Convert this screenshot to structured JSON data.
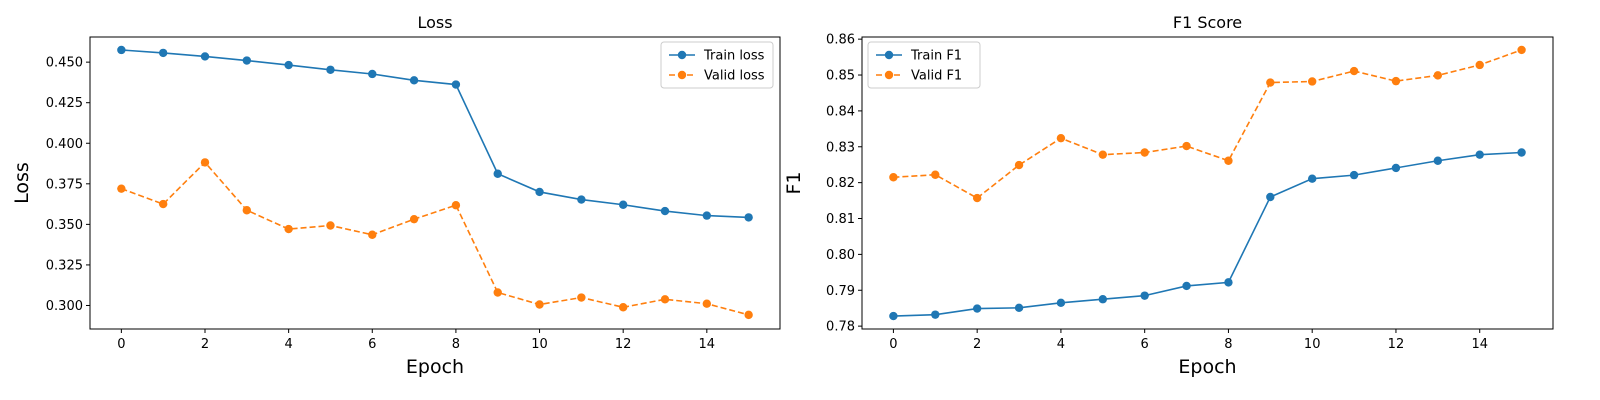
{
  "colors": {
    "train": "#1f77b4",
    "valid": "#ff7f0e"
  },
  "chart_data": [
    {
      "type": "line",
      "title": "Loss",
      "xlabel": "Epoch",
      "ylabel": "Loss",
      "x": [
        0,
        1,
        2,
        3,
        4,
        5,
        6,
        7,
        8,
        9,
        10,
        11,
        12,
        13,
        14,
        15
      ],
      "xlim": [
        -0.75,
        15.75
      ],
      "ylim": [
        0.2855,
        0.4655
      ],
      "xticks": [
        0,
        2,
        4,
        6,
        8,
        10,
        12,
        14
      ],
      "xtick_labels": [
        "0",
        "2",
        "4",
        "6",
        "8",
        "10",
        "12",
        "14"
      ],
      "yticks": [
        0.3,
        0.325,
        0.35,
        0.375,
        0.4,
        0.425,
        0.45
      ],
      "ytick_labels": [
        "0.300",
        "0.325",
        "0.350",
        "0.375",
        "0.400",
        "0.425",
        "0.450"
      ],
      "legend_position": "top-right",
      "grid": false,
      "series": [
        {
          "name": "Train loss",
          "style": "solid",
          "color_key": "train",
          "values": [
            0.4575,
            0.4557,
            0.4535,
            0.451,
            0.4482,
            0.4453,
            0.4427,
            0.4388,
            0.4362,
            0.3812,
            0.37,
            0.3653,
            0.3621,
            0.3582,
            0.3554,
            0.3543
          ]
        },
        {
          "name": "Valid loss",
          "style": "dashed",
          "color_key": "valid",
          "values": [
            0.372,
            0.3625,
            0.3882,
            0.3587,
            0.3471,
            0.3493,
            0.3436,
            0.3532,
            0.3618,
            0.308,
            0.3006,
            0.3049,
            0.2989,
            0.3038,
            0.3011,
            0.2942
          ]
        }
      ]
    },
    {
      "type": "line",
      "title": "F1 Score",
      "xlabel": "Epoch",
      "ylabel": "F1",
      "x": [
        0,
        1,
        2,
        3,
        4,
        5,
        6,
        7,
        8,
        9,
        10,
        11,
        12,
        13,
        14,
        15
      ],
      "xlim": [
        -0.75,
        15.75
      ],
      "ylim": [
        0.7792,
        0.8606
      ],
      "xticks": [
        0,
        2,
        4,
        6,
        8,
        10,
        12,
        14
      ],
      "xtick_labels": [
        "0",
        "2",
        "4",
        "6",
        "8",
        "10",
        "12",
        "14"
      ],
      "yticks": [
        0.78,
        0.79,
        0.8,
        0.81,
        0.82,
        0.83,
        0.84,
        0.85,
        0.86
      ],
      "ytick_labels": [
        "0.78",
        "0.79",
        "0.80",
        "0.81",
        "0.82",
        "0.83",
        "0.84",
        "0.85",
        "0.86"
      ],
      "legend_position": "top-left",
      "grid": false,
      "series": [
        {
          "name": "Train F1",
          "style": "solid",
          "color_key": "train",
          "values": [
            0.7828,
            0.7832,
            0.7849,
            0.7851,
            0.7865,
            0.7875,
            0.7885,
            0.7912,
            0.7922,
            0.816,
            0.8211,
            0.8221,
            0.8241,
            0.8261,
            0.8278,
            0.8284
          ]
        },
        {
          "name": "Valid F1",
          "style": "dashed",
          "color_key": "valid",
          "values": [
            0.8215,
            0.8222,
            0.8157,
            0.8249,
            0.8324,
            0.8278,
            0.8284,
            0.8302,
            0.8261,
            0.8479,
            0.8482,
            0.8511,
            0.8483,
            0.8499,
            0.8528,
            0.857
          ]
        }
      ]
    }
  ]
}
